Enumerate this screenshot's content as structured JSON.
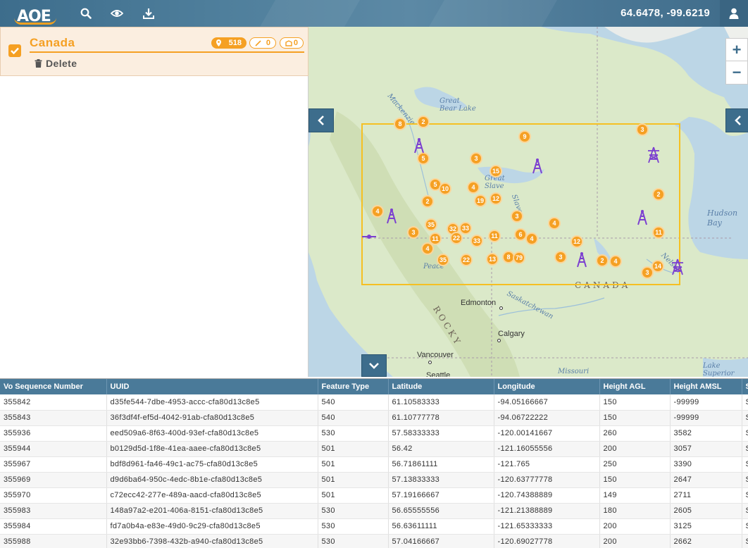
{
  "app": {
    "logo_text": "AOE"
  },
  "topbar": {
    "coordinates": "64.6478, -99.6219"
  },
  "layer": {
    "name": "Canada",
    "checked": true,
    "points_count": "518",
    "lines_count": "0",
    "polygons_count": "0",
    "delete_label": "Delete"
  },
  "map": {
    "labels": {
      "great_bear_lake": "Great\nBear Lake",
      "great_slave": "Great\nSlave",
      "hudson_bay": "Hudson\nBay",
      "canada": "CANADA",
      "rocky": "ROCKY",
      "edmonton": "Edmonton",
      "calgary": "Calgary",
      "vancouver": "Vancouver",
      "seattle": "Seattle",
      "saskatchewan": "Saskatchewan",
      "missouri": "Missouri",
      "lake_superior": "Lake\nSuperior",
      "mackenzie": "Mackenzie",
      "peace": "Peace",
      "nelson": "Nelson",
      "slave": "Slave"
    },
    "clusters": [
      {
        "count": "8"
      },
      {
        "count": "2"
      },
      {
        "count": "9"
      },
      {
        "count": "3"
      },
      {
        "count": "5"
      },
      {
        "count": "3"
      },
      {
        "count": "15"
      },
      {
        "count": "5"
      },
      {
        "count": "10"
      },
      {
        "count": "4"
      },
      {
        "count": "19"
      },
      {
        "count": "12"
      },
      {
        "count": "2"
      },
      {
        "count": "2"
      },
      {
        "count": "4"
      },
      {
        "count": "35"
      },
      {
        "count": "3"
      },
      {
        "count": "32"
      },
      {
        "count": "33"
      },
      {
        "count": "11"
      },
      {
        "count": "22"
      },
      {
        "count": "33"
      },
      {
        "count": "11"
      },
      {
        "count": "3"
      },
      {
        "count": "6"
      },
      {
        "count": "4"
      },
      {
        "count": "4"
      },
      {
        "count": "11"
      },
      {
        "count": "4"
      },
      {
        "count": "12"
      },
      {
        "count": "35"
      },
      {
        "count": "22"
      },
      {
        "count": "13"
      },
      {
        "count": "8"
      },
      {
        "count": "79"
      },
      {
        "count": "3"
      },
      {
        "count": "2"
      },
      {
        "count": "4"
      },
      {
        "count": "14"
      },
      {
        "count": "3"
      }
    ]
  },
  "table": {
    "columns": [
      "Vo Sequence Number",
      "UUID",
      "Feature Type",
      "Latitude",
      "Longitude",
      "Height AGL",
      "Height AMSL",
      "S"
    ],
    "rows": [
      [
        "355842",
        "d35fe544-7dbe-4953-accc-cfa80d13c8e5",
        "540",
        "61.10583333",
        "-94.05166667",
        "150",
        "-99999",
        "S"
      ],
      [
        "355843",
        "36f3df4f-ef5d-4042-91ab-cfa80d13c8e5",
        "540",
        "61.10777778",
        "-94.06722222",
        "150",
        "-99999",
        "S"
      ],
      [
        "355936",
        "eed509a6-8f63-400d-93ef-cfa80d13c8e5",
        "530",
        "57.58333333",
        "-120.00141667",
        "260",
        "3582",
        "S"
      ],
      [
        "355944",
        "b0129d5d-1f8e-41ea-aaee-cfa80d13c8e5",
        "501",
        "56.42",
        "-121.16055556",
        "200",
        "3057",
        "S"
      ],
      [
        "355967",
        "bdf8d961-fa46-49c1-ac75-cfa80d13c8e5",
        "501",
        "56.71861111",
        "-121.765",
        "250",
        "3390",
        "S"
      ],
      [
        "355969",
        "d9d6ba64-950c-4edc-8b1e-cfa80d13c8e5",
        "501",
        "57.13833333",
        "-120.63777778",
        "150",
        "2647",
        "S"
      ],
      [
        "355970",
        "c72ecc42-277e-489a-aacd-cfa80d13c8e5",
        "501",
        "57.19166667",
        "-120.74388889",
        "149",
        "2711",
        "S"
      ],
      [
        "355983",
        "148a97a2-e201-406a-8151-cfa80d13c8e5",
        "530",
        "56.65555556",
        "-121.21388889",
        "180",
        "2605",
        "S"
      ],
      [
        "355984",
        "fd7a0b4a-e83e-49d0-9c29-cfa80d13c8e5",
        "530",
        "56.63611111",
        "-121.65333333",
        "200",
        "3125",
        "S"
      ],
      [
        "355988",
        "32e93bb6-7398-432b-a940-cfa80d13c8e5",
        "530",
        "57.04166667",
        "-120.69027778",
        "200",
        "2662",
        "S"
      ]
    ]
  },
  "colors": {
    "accent": "#f5a023",
    "header": "#4a7a99",
    "topbar": "#4f7f9c",
    "tower": "#7b3fd0",
    "selection": "#f5c023"
  },
  "icons": [
    "search-icon",
    "eye-icon",
    "download-icon",
    "user-icon",
    "check-icon",
    "trash-icon",
    "map-marker-icon",
    "line-icon",
    "polygon-icon",
    "zoom-in-icon",
    "zoom-out-icon",
    "chevron-left-icon",
    "chevron-down-icon",
    "tower-icon"
  ]
}
